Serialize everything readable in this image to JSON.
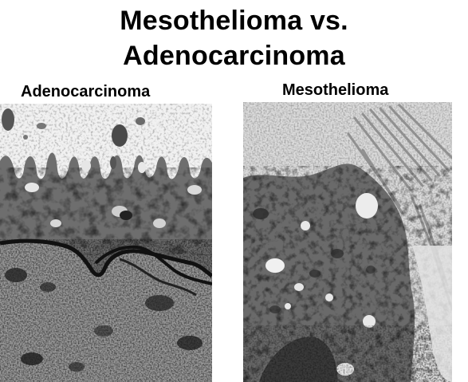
{
  "title": {
    "line1": "Mesothelioma vs.",
    "line2": "Adenocarcinoma"
  },
  "panels": [
    {
      "label": "Adenocarcinoma"
    },
    {
      "label": "Mesothelioma"
    }
  ]
}
